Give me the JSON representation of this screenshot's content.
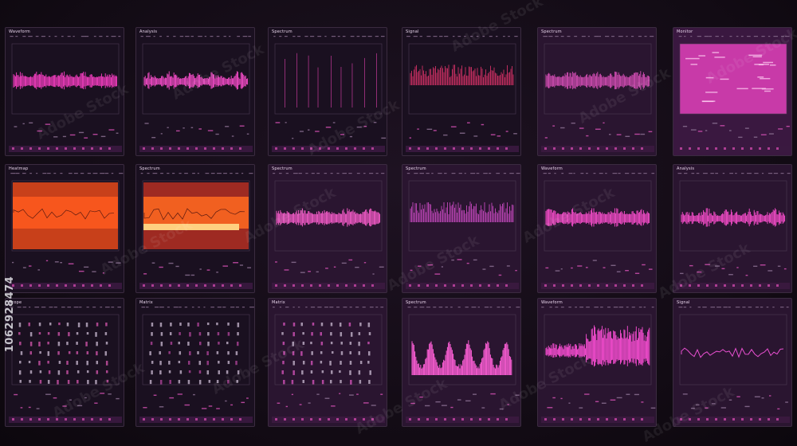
{
  "watermark": {
    "id": "1062928474",
    "brand": "Adobe Stock"
  },
  "panels": [
    {
      "title": "Waveform",
      "style": "dark",
      "viz": "wave",
      "color": "#ff3fc8"
    },
    {
      "title": "Analysis",
      "style": "dark",
      "viz": "spiky",
      "color": "#ff4fd0"
    },
    {
      "title": "Spectrum",
      "style": "dark",
      "viz": "lines",
      "color": "#d83fa8"
    },
    {
      "title": "Signal",
      "style": "dark",
      "viz": "dense",
      "color": "#e8356e"
    },
    {
      "title": "Spectrum",
      "style": "purple",
      "viz": "wave",
      "color": "#d84fb8"
    },
    {
      "title": "Monitor",
      "style": "pink",
      "viz": "fill",
      "color": "#ff4fc8"
    },
    {
      "title": "Heatmap",
      "style": "dark",
      "viz": "orange",
      "color": "#ff5a1f"
    },
    {
      "title": "Spectrum",
      "style": "dark",
      "viz": "orange2",
      "color": "#ff6a20"
    },
    {
      "title": "Spectrum",
      "style": "purple",
      "viz": "wave",
      "color": "#ff5fd0"
    },
    {
      "title": "Spectrum",
      "style": "purple",
      "viz": "dense",
      "color": "#d84fd0"
    },
    {
      "title": "Waveform",
      "style": "purple",
      "viz": "wave",
      "color": "#ff4fd0"
    },
    {
      "title": "Analysis",
      "style": "purple",
      "viz": "spiky",
      "color": "#ff4fd0"
    },
    {
      "title": "Scope",
      "style": "dark",
      "viz": "dots",
      "color": "#c34fa0"
    },
    {
      "title": "Matrix",
      "style": "dark",
      "viz": "dots",
      "color": "#a43f90"
    },
    {
      "title": "Matrix",
      "style": "purple",
      "viz": "dots",
      "color": "#c84fb0"
    },
    {
      "title": "Spectrum",
      "style": "purple",
      "viz": "peaks",
      "color": "#ff5fd8"
    },
    {
      "title": "Waveform",
      "style": "purple",
      "viz": "burst",
      "color": "#ff4fd8"
    },
    {
      "title": "Signal",
      "style": "purple",
      "viz": "line",
      "color": "#e84fd0"
    }
  ]
}
